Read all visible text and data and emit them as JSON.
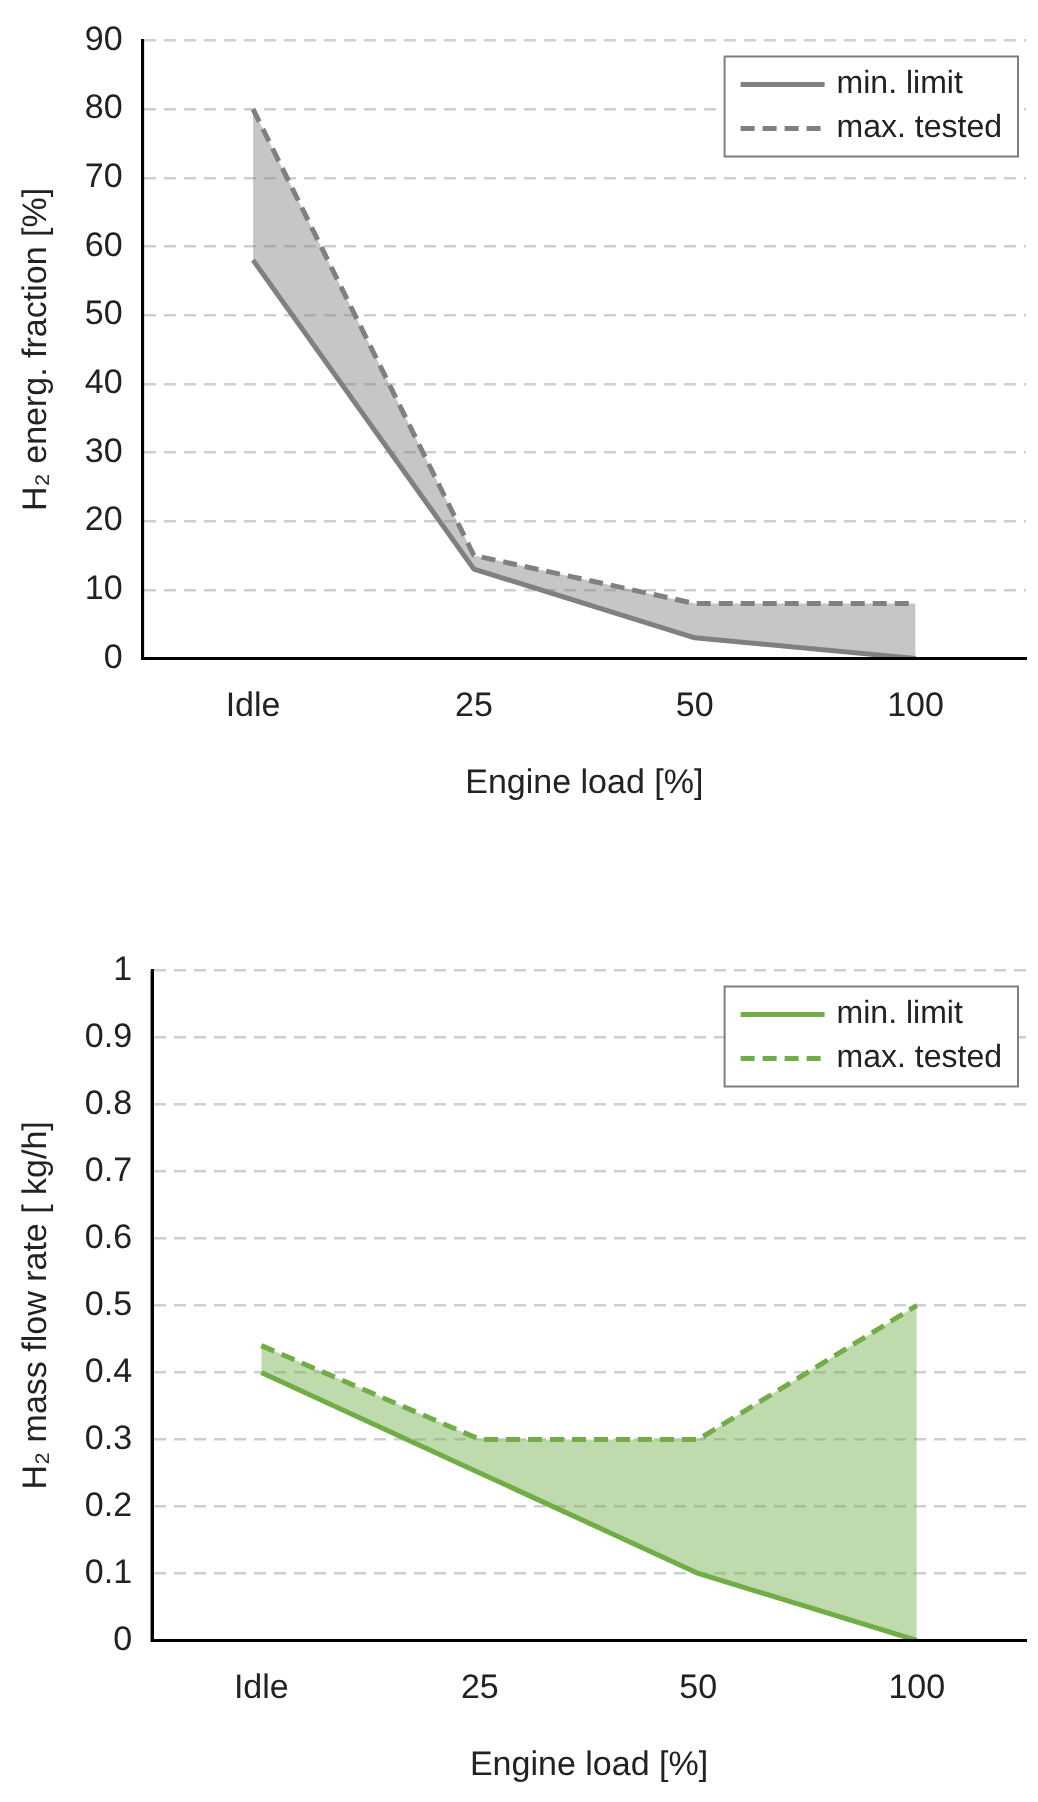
{
  "chart_data": [
    {
      "type": "line",
      "xlabel": "Engine load [%]",
      "ylabel": "H₂ energ. fraction [%]",
      "categories": [
        "Idle",
        "25",
        "50",
        "100"
      ],
      "series": [
        {
          "name": "min. limit",
          "color": "#808080",
          "line_style": "solid",
          "values": [
            58,
            13,
            3,
            0
          ]
        },
        {
          "name": "max. tested",
          "color": "#808080",
          "line_style": "dashed",
          "values": [
            80,
            15,
            8,
            8
          ],
          "lower": [
            58,
            13,
            3,
            0
          ],
          "upper": [
            80,
            15,
            8,
            8
          ]
        }
      ],
      "ylim": [
        0,
        90
      ],
      "yticks": [
        0,
        10,
        20,
        30,
        40,
        50,
        60,
        70,
        80,
        90
      ],
      "grid": "y",
      "legend": "top right",
      "marker": "none"
    },
    {
      "type": "line",
      "xlabel": "Engine load [%]",
      "ylabel": "H₂ mass flow rate [ kg/h]",
      "categories": [
        "Idle",
        "25",
        "50",
        "100"
      ],
      "series": [
        {
          "name": "min. limit",
          "color": "#70ad47",
          "line_style": "solid",
          "values": [
            0.4,
            0.25,
            0.1,
            0
          ]
        },
        {
          "name": "max. tested",
          "color": "#70ad47",
          "line_style": "dashed",
          "values": [
            0.44,
            0.3,
            0.3,
            0.5
          ],
          "lower": [
            0.4,
            0.25,
            0.1,
            0
          ],
          "upper": [
            0.44,
            0.3,
            0.3,
            0.5
          ]
        }
      ],
      "ylim": [
        0,
        1
      ],
      "yticks": [
        0,
        0.1,
        0.2,
        0.3,
        0.4,
        0.5,
        0.6,
        0.7,
        0.8,
        0.9,
        1
      ],
      "grid": "y",
      "legend": "top right",
      "marker": "none"
    }
  ]
}
